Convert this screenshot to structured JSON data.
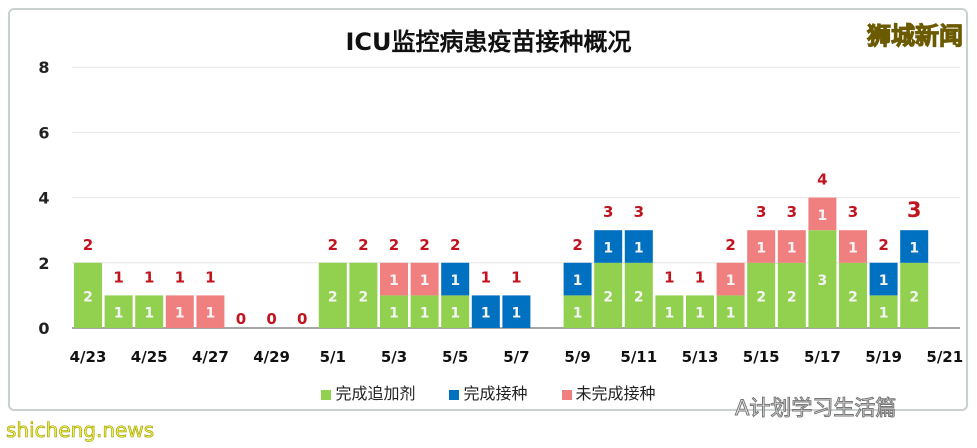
{
  "chart_data": {
    "type": "bar",
    "stacked": true,
    "title": "ICU监控病患疫苗接种概况",
    "categories": [
      "4/23",
      "4/24",
      "4/25",
      "4/26",
      "4/27",
      "4/28",
      "4/29",
      "4/30",
      "5/1",
      "5/2",
      "5/3",
      "5/4",
      "5/5",
      "5/6",
      "5/7",
      "5/8",
      "5/9",
      "5/10",
      "5/11",
      "5/12",
      "5/13",
      "5/14",
      "5/15",
      "5/16",
      "5/17",
      "5/18",
      "5/19",
      "5/20",
      "5/21"
    ],
    "tick_labels": [
      "4/23",
      "4/25",
      "4/27",
      "4/29",
      "5/1",
      "5/3",
      "5/5",
      "5/7",
      "5/9",
      "5/11",
      "5/13",
      "5/15",
      "5/17",
      "5/19",
      "5/21"
    ],
    "series": [
      {
        "name": "完成追加剂",
        "color": "#92d050",
        "values": [
          2,
          1,
          1,
          0,
          0,
          0,
          0,
          0,
          2,
          2,
          1,
          1,
          1,
          0,
          0,
          0,
          1,
          2,
          2,
          1,
          1,
          1,
          2,
          2,
          3,
          2,
          1,
          2,
          0
        ]
      },
      {
        "name": "完成接种",
        "color": "#0070c0",
        "values": [
          0,
          0,
          0,
          0,
          0,
          0,
          0,
          0,
          0,
          0,
          0,
          0,
          1,
          1,
          1,
          0,
          1,
          1,
          1,
          0,
          0,
          0,
          0,
          0,
          0,
          0,
          1,
          1,
          0
        ]
      },
      {
        "name": "未完成接种",
        "color": "#f08080",
        "values": [
          0,
          0,
          0,
          1,
          1,
          0,
          0,
          0,
          0,
          0,
          1,
          1,
          0,
          0,
          0,
          0,
          0,
          0,
          0,
          0,
          0,
          1,
          1,
          1,
          1,
          1,
          0,
          0,
          0
        ]
      }
    ],
    "totals": [
      2,
      1,
      1,
      1,
      1,
      0,
      0,
      0,
      2,
      2,
      2,
      2,
      2,
      1,
      1,
      null,
      2,
      3,
      3,
      1,
      1,
      2,
      3,
      3,
      4,
      3,
      2,
      3,
      null
    ],
    "ylim": [
      0,
      8
    ],
    "yticks": [
      0,
      2,
      4,
      6,
      8
    ],
    "grid": true,
    "legend": "bottom",
    "xlabel": "",
    "ylabel": ""
  },
  "logo": "狮城新闻",
  "watermark_wechat": "A计划学习生活篇",
  "watermark_site": "shicheng.news"
}
